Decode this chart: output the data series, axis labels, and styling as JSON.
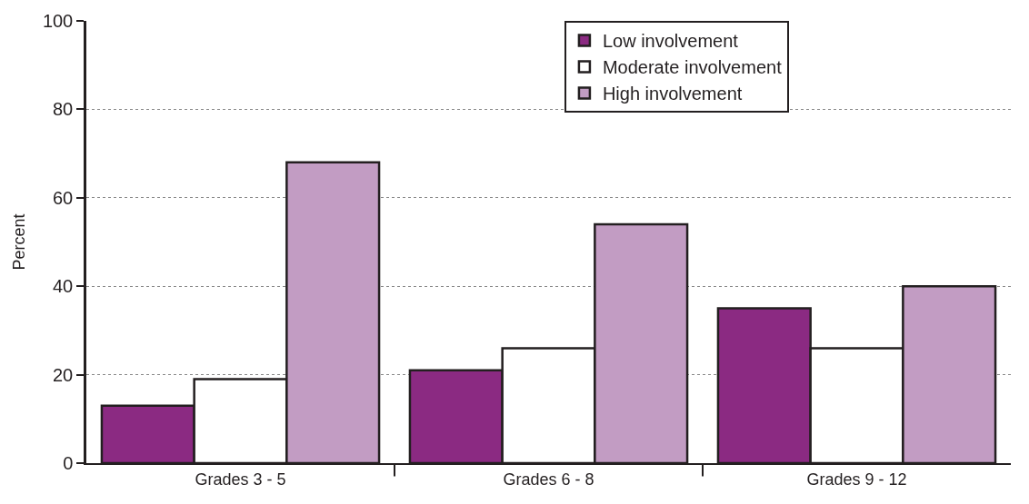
{
  "chart_data": {
    "type": "bar",
    "ylabel": "Percent",
    "categories": [
      "Grades 3 - 5",
      "Grades 6 - 8",
      "Grades 9 - 12"
    ],
    "series": [
      {
        "name": "Low involvement",
        "color": "#8b2a82",
        "values": [
          13,
          21,
          35
        ]
      },
      {
        "name": "Moderate involvement",
        "color": "#ffffff",
        "values": [
          19,
          26,
          26
        ]
      },
      {
        "name": "High involvement",
        "color": "#c29cc3",
        "values": [
          68,
          54,
          40
        ]
      }
    ],
    "ylim": [
      0,
      100
    ],
    "yticks": [
      0,
      20,
      40,
      60,
      80,
      100
    ],
    "grid": "y",
    "legend": "top right"
  }
}
